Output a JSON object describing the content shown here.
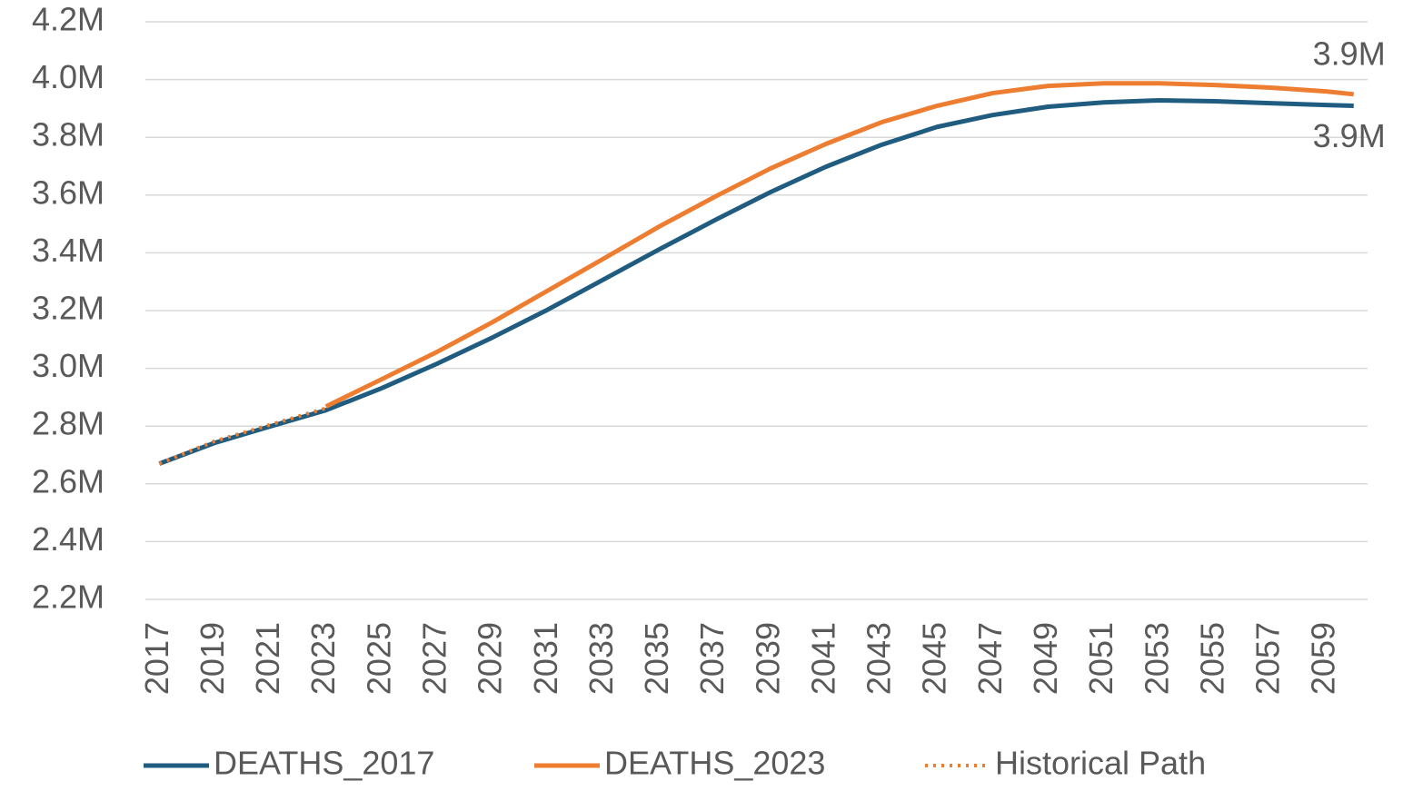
{
  "chart_data": {
    "type": "line",
    "x": [
      2017,
      2019,
      2021,
      2023,
      2025,
      2027,
      2029,
      2031,
      2033,
      2035,
      2037,
      2039,
      2041,
      2043,
      2045,
      2047,
      2049,
      2051,
      2053,
      2055,
      2057,
      2059,
      2060
    ],
    "series": [
      {
        "name": "DEATHS_2017",
        "color": "#1f5c80",
        "style": "solid",
        "values": [
          2670000,
          2742000,
          2799000,
          2855000,
          2931000,
          3016000,
          3107000,
          3204000,
          3308000,
          3412000,
          3513000,
          3610000,
          3698000,
          3774000,
          3836000,
          3877000,
          3906000,
          3921000,
          3928000,
          3925000,
          3918000,
          3912000,
          3909000
        ],
        "value_labels": [
          null,
          null,
          null,
          null,
          null,
          null,
          null,
          null,
          null,
          null,
          null,
          null,
          null,
          null,
          null,
          null,
          null,
          null,
          null,
          null,
          null,
          null,
          "3.9M"
        ]
      },
      {
        "name": "DEATHS_2023",
        "color": "#ed7d31",
        "style": "solid",
        "values": [
          null,
          null,
          null,
          2868000,
          2962000,
          3057000,
          3160000,
          3270000,
          3380000,
          3491000,
          3594000,
          3692000,
          3777000,
          3852000,
          3909000,
          3953000,
          3978000,
          3987000,
          3987000,
          3981000,
          3972000,
          3959000,
          3949000
        ],
        "value_labels": [
          null,
          null,
          null,
          null,
          null,
          null,
          null,
          null,
          null,
          null,
          null,
          null,
          null,
          null,
          null,
          null,
          null,
          null,
          null,
          null,
          null,
          null,
          "3.9M"
        ]
      },
      {
        "name": "Historical Path",
        "color": "#ed7d31",
        "style": "dotted",
        "values": [
          2670000,
          2748000,
          2805000,
          2862000,
          null,
          null,
          null,
          null,
          null,
          null,
          null,
          null,
          null,
          null,
          null,
          null,
          null,
          null,
          null,
          null,
          null,
          null,
          null
        ]
      }
    ],
    "xlim": [
      2016.5,
      2060.5
    ],
    "xticks": [
      2017,
      2019,
      2021,
      2023,
      2025,
      2027,
      2029,
      2031,
      2033,
      2035,
      2037,
      2039,
      2041,
      2043,
      2045,
      2047,
      2049,
      2051,
      2053,
      2055,
      2057,
      2059
    ],
    "ylim": [
      2200000,
      4200000
    ],
    "yticks": [
      {
        "value": 2200000,
        "label": "2.2M"
      },
      {
        "value": 2400000,
        "label": "2.4M"
      },
      {
        "value": 2600000,
        "label": "2.6M"
      },
      {
        "value": 2800000,
        "label": "2.8M"
      },
      {
        "value": 3000000,
        "label": "3.0M"
      },
      {
        "value": 3200000,
        "label": "3.2M"
      },
      {
        "value": 3400000,
        "label": "3.4M"
      },
      {
        "value": 3600000,
        "label": "3.6M"
      },
      {
        "value": 3800000,
        "label": "3.8M"
      },
      {
        "value": 4000000,
        "label": "4.0M"
      },
      {
        "value": 4200000,
        "label": "4.2M"
      }
    ],
    "grid": true,
    "legend": "bottom"
  }
}
